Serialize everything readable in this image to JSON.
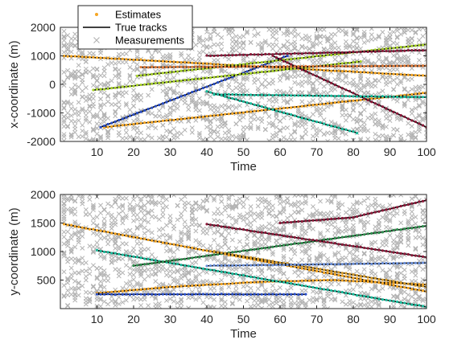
{
  "chart_data": [
    {
      "type": "line",
      "title": "",
      "xlabel": "Time",
      "ylabel": "x-coordinate (m)",
      "xlim": [
        0,
        100
      ],
      "ylim": [
        -2000,
        2000
      ],
      "xticks": [
        10,
        20,
        30,
        40,
        50,
        60,
        70,
        80,
        90,
        100
      ],
      "yticks": [
        -2000,
        -1000,
        0,
        1000,
        2000
      ],
      "grid": false,
      "legend": {
        "placement": "top-left",
        "entries": [
          {
            "label": "Estimates",
            "marker": "dot"
          },
          {
            "label": "True tracks",
            "marker": "line"
          },
          {
            "label": "Measurements",
            "marker": "x"
          }
        ]
      },
      "measurement_color": "#b3b3b3",
      "true_track_color": "#000000",
      "series": [
        {
          "start": [
            1,
            1000
          ],
          "end": [
            100,
            300
          ],
          "color": "#f5a623"
        },
        {
          "start": [
            12,
            -1500
          ],
          "end": [
            100,
            -300
          ],
          "color": "#f5a623"
        },
        {
          "start": [
            11,
            -1500
          ],
          "end": [
            62,
            1000
          ],
          "color": "#2b4fc7"
        },
        {
          "start": [
            9,
            -200
          ],
          "end": [
            82,
            800
          ],
          "color": "#a7d129"
        },
        {
          "start": [
            21,
            300
          ],
          "end": [
            100,
            1400
          ],
          "color": "#a7d129"
        },
        {
          "start": [
            40,
            1000
          ],
          "end": [
            100,
            1200
          ],
          "color": "#8b1a3a"
        },
        {
          "start": [
            58,
            1000
          ],
          "end": [
            100,
            -1500
          ],
          "color": "#8b1a3a"
        },
        {
          "start": [
            40,
            -250
          ],
          "end": [
            81,
            -1700
          ],
          "color": "#1abc9c"
        },
        {
          "start": [
            42,
            -350
          ],
          "end": [
            100,
            -450
          ],
          "color": "#1abc9c"
        },
        {
          "start": [
            22,
            600
          ],
          "end": [
            100,
            650
          ],
          "color": "#e07b39"
        }
      ]
    },
    {
      "type": "line",
      "title": "",
      "xlabel": "Time",
      "ylabel": "y-coordinate (m)",
      "xlim": [
        0,
        100
      ],
      "ylim": [
        0,
        2000
      ],
      "xticks": [
        10,
        20,
        30,
        40,
        50,
        60,
        70,
        80,
        90,
        100
      ],
      "yticks": [
        500,
        1000,
        1500,
        2000
      ],
      "grid": false,
      "measurement_color": "#b3b3b3",
      "true_track_color": "#000000",
      "series": [
        {
          "start": [
            1,
            1480
          ],
          "end": [
            100,
            300
          ],
          "color": "#f5a623"
        },
        {
          "points": [
            [
              10,
              270
            ],
            [
              30,
              380
            ],
            [
              55,
              470
            ],
            [
              75,
              500
            ],
            [
              100,
              420
            ]
          ],
          "color": "#f5a623"
        },
        {
          "start": [
            10,
            250
          ],
          "end": [
            67,
            250
          ],
          "color": "#2b4fc7"
        },
        {
          "start": [
            10,
            1020
          ],
          "end": [
            100,
            30
          ],
          "color": "#1abc9c"
        },
        {
          "start": [
            20,
            750
          ],
          "end": [
            100,
            1450
          ],
          "color": "#2f8f4e"
        },
        {
          "start": [
            40,
            1480
          ],
          "end": [
            100,
            900
          ],
          "color": "#8b1a3a"
        },
        {
          "points": [
            [
              60,
              1500
            ],
            [
              80,
              1600
            ],
            [
              100,
              1900
            ]
          ],
          "color": "#8b1a3a"
        },
        {
          "start": [
            42,
            1000
          ],
          "end": [
            100,
            380
          ],
          "color": "#d49a2a"
        },
        {
          "start": [
            40,
            750
          ],
          "end": [
            100,
            800
          ],
          "color": "#6a8fd9"
        }
      ]
    }
  ]
}
